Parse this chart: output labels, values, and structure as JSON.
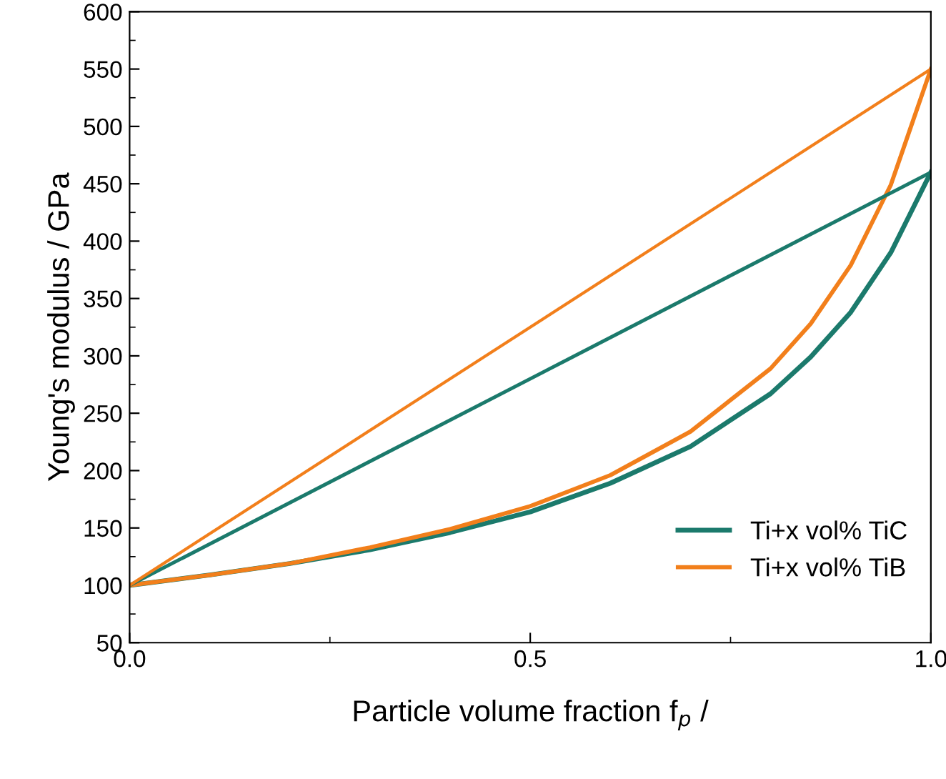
{
  "chart_data": {
    "type": "line",
    "xlabel": "Particle volume fraction f$_{p}$ /",
    "ylabel": "Young's modulus / GPa",
    "xlim": [
      0,
      1
    ],
    "ylim": [
      50,
      600
    ],
    "xticks": [
      {
        "value": 0,
        "label": "0.0"
      },
      {
        "value": 0.5,
        "label": "0.5"
      },
      {
        "value": 1,
        "label": "1.0"
      }
    ],
    "yticks": [
      50,
      100,
      150,
      200,
      250,
      300,
      350,
      400,
      450,
      500,
      550,
      600
    ],
    "grid": false,
    "legend": "bottom right",
    "marker": "none",
    "line_style": "solid",
    "series": [
      {
        "name": "Ti+x vol% TiC",
        "color": "#1b7a6c",
        "x": [
          0,
          0.1,
          0.2,
          0.3,
          0.4,
          0.5,
          0.6,
          0.7,
          0.8,
          0.85,
          0.9,
          0.95,
          1
        ],
        "values": [
          100,
          109,
          119,
          131,
          146,
          164,
          189,
          221,
          267,
          299,
          338,
          390,
          460
        ]
      },
      {
        "name": "Ti+x vol% TiB",
        "color": "#f27f1b",
        "x": [
          0,
          0.1,
          0.2,
          0.3,
          0.4,
          0.5,
          0.6,
          0.7,
          0.8,
          0.85,
          0.9,
          0.95,
          1
        ],
        "values": [
          100,
          109,
          119,
          133,
          149,
          169,
          196,
          234,
          289,
          328,
          379,
          449,
          550
        ]
      },
      {
        "color": "#1b7a6c",
        "x": [
          0,
          1
        ],
        "values": [
          100,
          460
        ]
      },
      {
        "color": "#f27f1b",
        "x": [
          0,
          1
        ],
        "values": [
          100,
          550
        ]
      }
    ]
  }
}
